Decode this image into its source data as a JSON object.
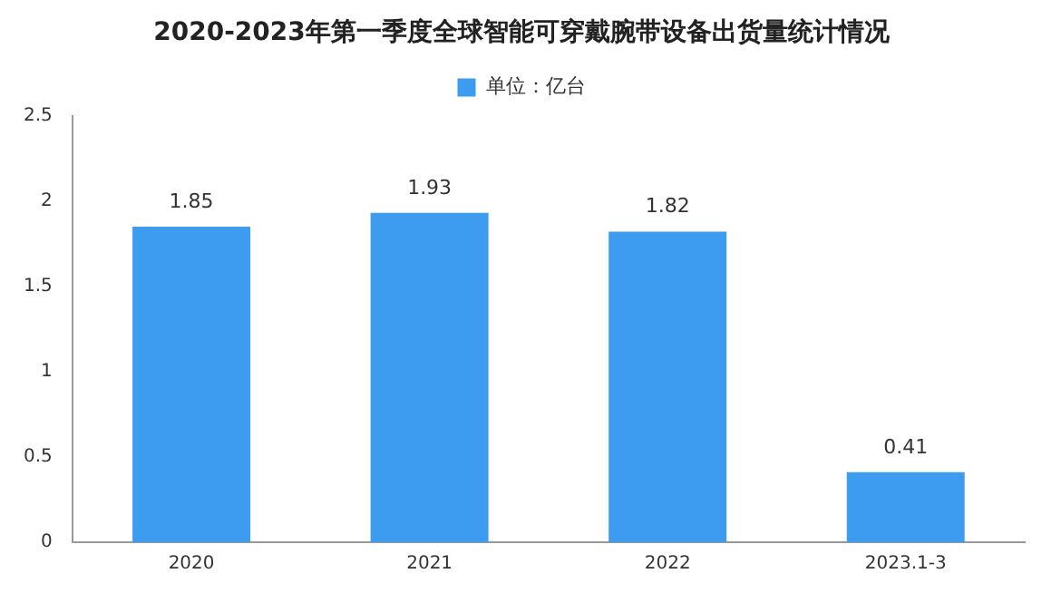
{
  "chart_data": {
    "type": "bar",
    "title": "2020-2023年第一季度全球智能可穿戴腕带设备出货量统计情况",
    "categories": [
      "2020",
      "2021",
      "2022",
      "2023.1-3"
    ],
    "series": [
      {
        "name": "单位：亿台",
        "color": "#3d9bf0",
        "values": [
          1.85,
          1.93,
          1.82,
          0.41
        ]
      }
    ],
    "ylim": [
      0,
      2.5
    ],
    "yticks": [
      0,
      0.5,
      1,
      1.5,
      2,
      2.5
    ],
    "grid": false,
    "legend": "top",
    "data_labels": true
  }
}
